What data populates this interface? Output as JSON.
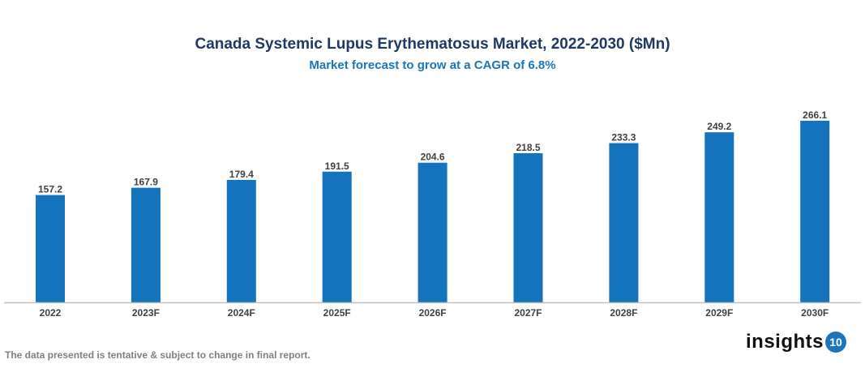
{
  "chart_data": {
    "type": "bar",
    "title": "Canada Systemic Lupus Erythematosus Market, 2022-2030 ($Mn)",
    "subtitle": "Market forecast to grow at a CAGR of 6.8%",
    "categories": [
      "2022",
      "2023F",
      "2024F",
      "2025F",
      "2026F",
      "2027F",
      "2028F",
      "2029F",
      "2030F"
    ],
    "values": [
      157.2,
      167.9,
      179.4,
      191.5,
      204.6,
      218.5,
      233.3,
      249.2,
      266.1
    ],
    "xlabel": "",
    "ylabel": "",
    "ylim": [
      0,
      300
    ],
    "grid": false,
    "data_labels": true,
    "bar_color": "#1373bd"
  },
  "footnote": "The data presented is tentative & subject to change in final report.",
  "logo": {
    "text": "insights",
    "badge": "10"
  }
}
